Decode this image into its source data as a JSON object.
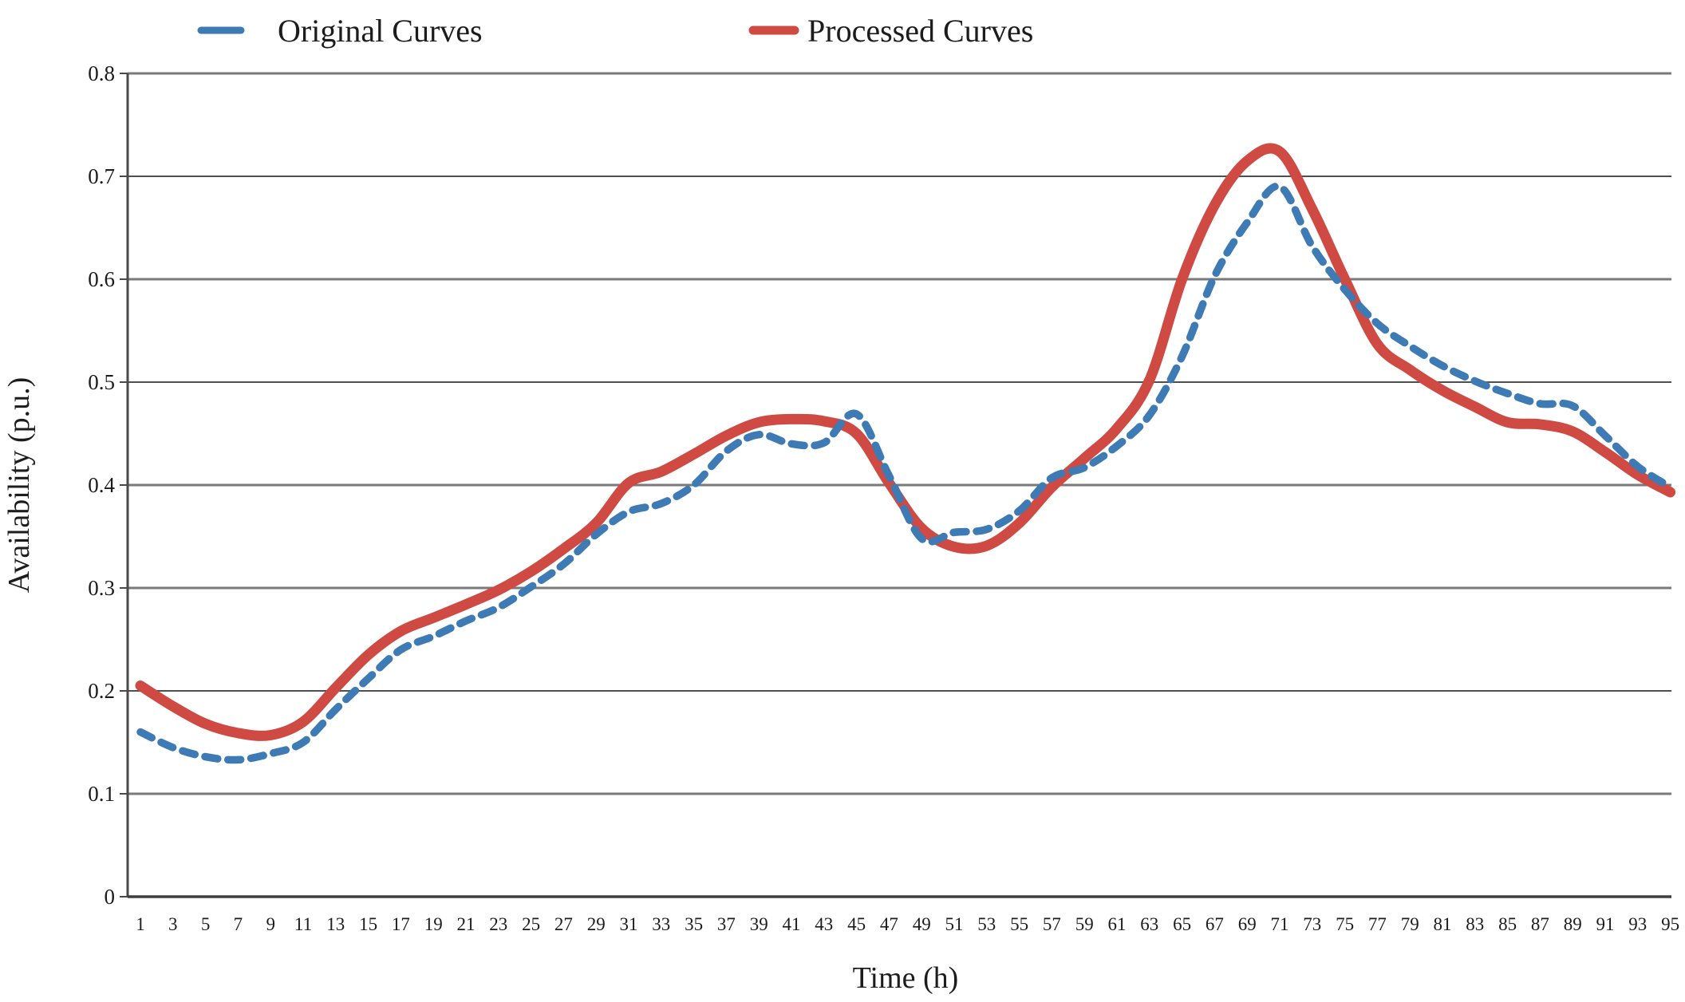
{
  "chart_data": {
    "type": "line",
    "title": "",
    "xlabel": "Time (h)",
    "ylabel": "Availability (p.u.)",
    "xlim": [
      1,
      95
    ],
    "ylim": [
      0,
      0.8
    ],
    "grid": "horizontal",
    "legend_position": "top",
    "y_ticks": [
      "0",
      "0.1",
      "0.2",
      "0.3",
      "0.4",
      "0.5",
      "0.6",
      "0.7",
      "0.8"
    ],
    "x": [
      1,
      3,
      5,
      7,
      9,
      11,
      13,
      15,
      17,
      19,
      21,
      23,
      25,
      27,
      29,
      31,
      33,
      35,
      37,
      39,
      41,
      43,
      45,
      47,
      49,
      51,
      53,
      55,
      57,
      59,
      61,
      63,
      65,
      67,
      69,
      71,
      73,
      75,
      77,
      79,
      81,
      83,
      85,
      87,
      89,
      91,
      93,
      95
    ],
    "series": [
      {
        "name": "Original Curves",
        "color": "#3e7ab4",
        "line_style": "dashed",
        "values": [
          0.16,
          0.145,
          0.136,
          0.133,
          0.139,
          0.15,
          0.182,
          0.212,
          0.24,
          0.253,
          0.268,
          0.281,
          0.301,
          0.323,
          0.352,
          0.374,
          0.382,
          0.4,
          0.433,
          0.449,
          0.44,
          0.441,
          0.469,
          0.409,
          0.348,
          0.354,
          0.357,
          0.375,
          0.407,
          0.417,
          0.438,
          0.468,
          0.525,
          0.603,
          0.655,
          0.69,
          0.632,
          0.59,
          0.557,
          0.535,
          0.516,
          0.501,
          0.489,
          0.479,
          0.477,
          0.448,
          0.418,
          0.398
        ]
      },
      {
        "name": "Processed Curves",
        "color": "#cf4a43",
        "line_style": "solid",
        "values": [
          0.205,
          0.185,
          0.168,
          0.159,
          0.157,
          0.17,
          0.203,
          0.235,
          0.258,
          0.271,
          0.284,
          0.298,
          0.316,
          0.338,
          0.363,
          0.402,
          0.413,
          0.43,
          0.448,
          0.461,
          0.464,
          0.462,
          0.45,
          0.402,
          0.358,
          0.34,
          0.341,
          0.363,
          0.398,
          0.426,
          0.455,
          0.502,
          0.6,
          0.672,
          0.715,
          0.724,
          0.668,
          0.6,
          0.537,
          0.512,
          0.492,
          0.476,
          0.461,
          0.459,
          0.452,
          0.432,
          0.41,
          0.393
        ]
      }
    ],
    "colors": {
      "grid_line": "#7a7a7a",
      "axis_line": "#4a4a4a",
      "tick_text": "#1c1c1c"
    }
  }
}
